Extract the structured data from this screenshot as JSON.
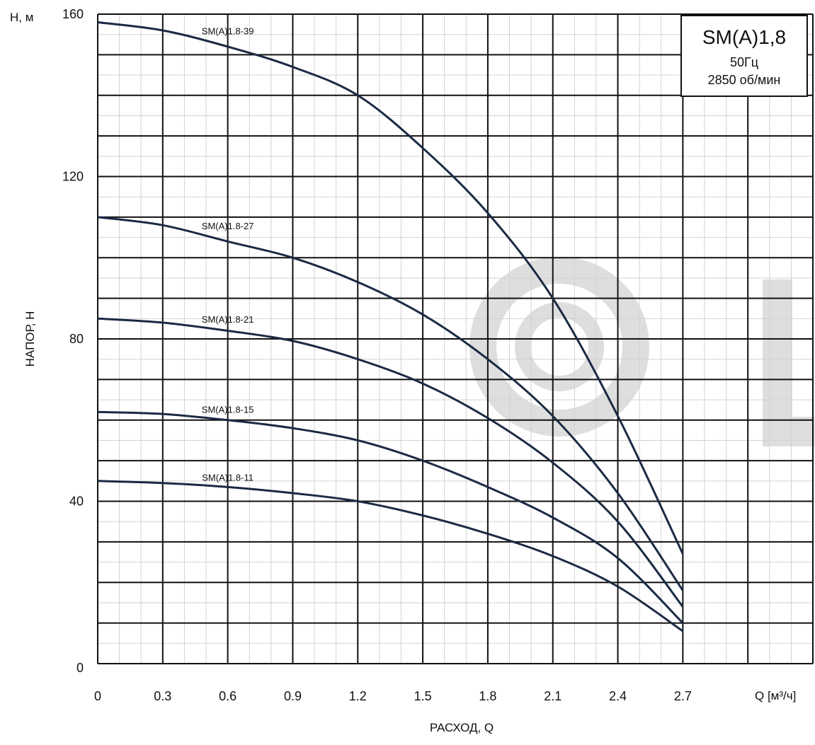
{
  "chart_data": {
    "type": "line",
    "title": "SM(A)1,8",
    "subtitle_lines": [
      "50Гц",
      "2850 об/мин"
    ],
    "xlabel": "РАСХОД, Q",
    "x_unit_label": "Q [м³/ч]",
    "ylabel": "НАПОР, Н",
    "y_unit_label": "Н, м",
    "xlim": [
      0,
      3.3
    ],
    "ylim": [
      0,
      160
    ],
    "x_ticks": [
      "0",
      "0.3",
      "0.6",
      "0.9",
      "1.2",
      "1.5",
      "1.8",
      "2.1",
      "2.4",
      "2.7"
    ],
    "x_tick_values": [
      0,
      0.3,
      0.6,
      0.9,
      1.2,
      1.5,
      1.8,
      2.1,
      2.4,
      2.7
    ],
    "y_ticks": [
      "0",
      "40",
      "80",
      "120",
      "160"
    ],
    "y_tick_values": [
      0,
      40,
      80,
      120,
      160
    ],
    "grid": true,
    "series": [
      {
        "name": "SM(A)1.8-39",
        "x": [
          0,
          0.3,
          0.6,
          0.9,
          1.2,
          1.5,
          1.8,
          2.1,
          2.4,
          2.7
        ],
        "y": [
          158,
          156,
          152,
          147,
          140,
          127,
          111,
          90,
          61,
          27
        ]
      },
      {
        "name": "SM(A)1.8-27",
        "x": [
          0,
          0.3,
          0.6,
          0.9,
          1.2,
          1.5,
          1.8,
          2.1,
          2.4,
          2.7
        ],
        "y": [
          110,
          108,
          104,
          100,
          94,
          86,
          75,
          61,
          42,
          18
        ]
      },
      {
        "name": "SM(A)1.8-21",
        "x": [
          0,
          0.3,
          0.6,
          0.9,
          1.2,
          1.5,
          1.8,
          2.1,
          2.4,
          2.7
        ],
        "y": [
          85,
          84,
          82,
          79.5,
          75,
          69,
          60.5,
          49.5,
          35,
          14
        ]
      },
      {
        "name": "SM(A)1.8-15",
        "x": [
          0,
          0.3,
          0.6,
          0.9,
          1.2,
          1.5,
          1.8,
          2.1,
          2.4,
          2.7
        ],
        "y": [
          62,
          61.5,
          60,
          58,
          55,
          50,
          43.5,
          36,
          26,
          10
        ]
      },
      {
        "name": "SM(A)1.8-11",
        "x": [
          0,
          0.3,
          0.6,
          0.9,
          1.2,
          1.5,
          1.8,
          2.1,
          2.4,
          2.7
        ],
        "y": [
          45,
          44.5,
          43.5,
          42,
          40,
          36.5,
          32,
          26.5,
          19,
          8
        ]
      }
    ],
    "colors": {
      "curve": "#1b2a44",
      "grid_major": "#111111",
      "grid_minor": "#d2d2d2",
      "watermark": "#dedede"
    }
  }
}
